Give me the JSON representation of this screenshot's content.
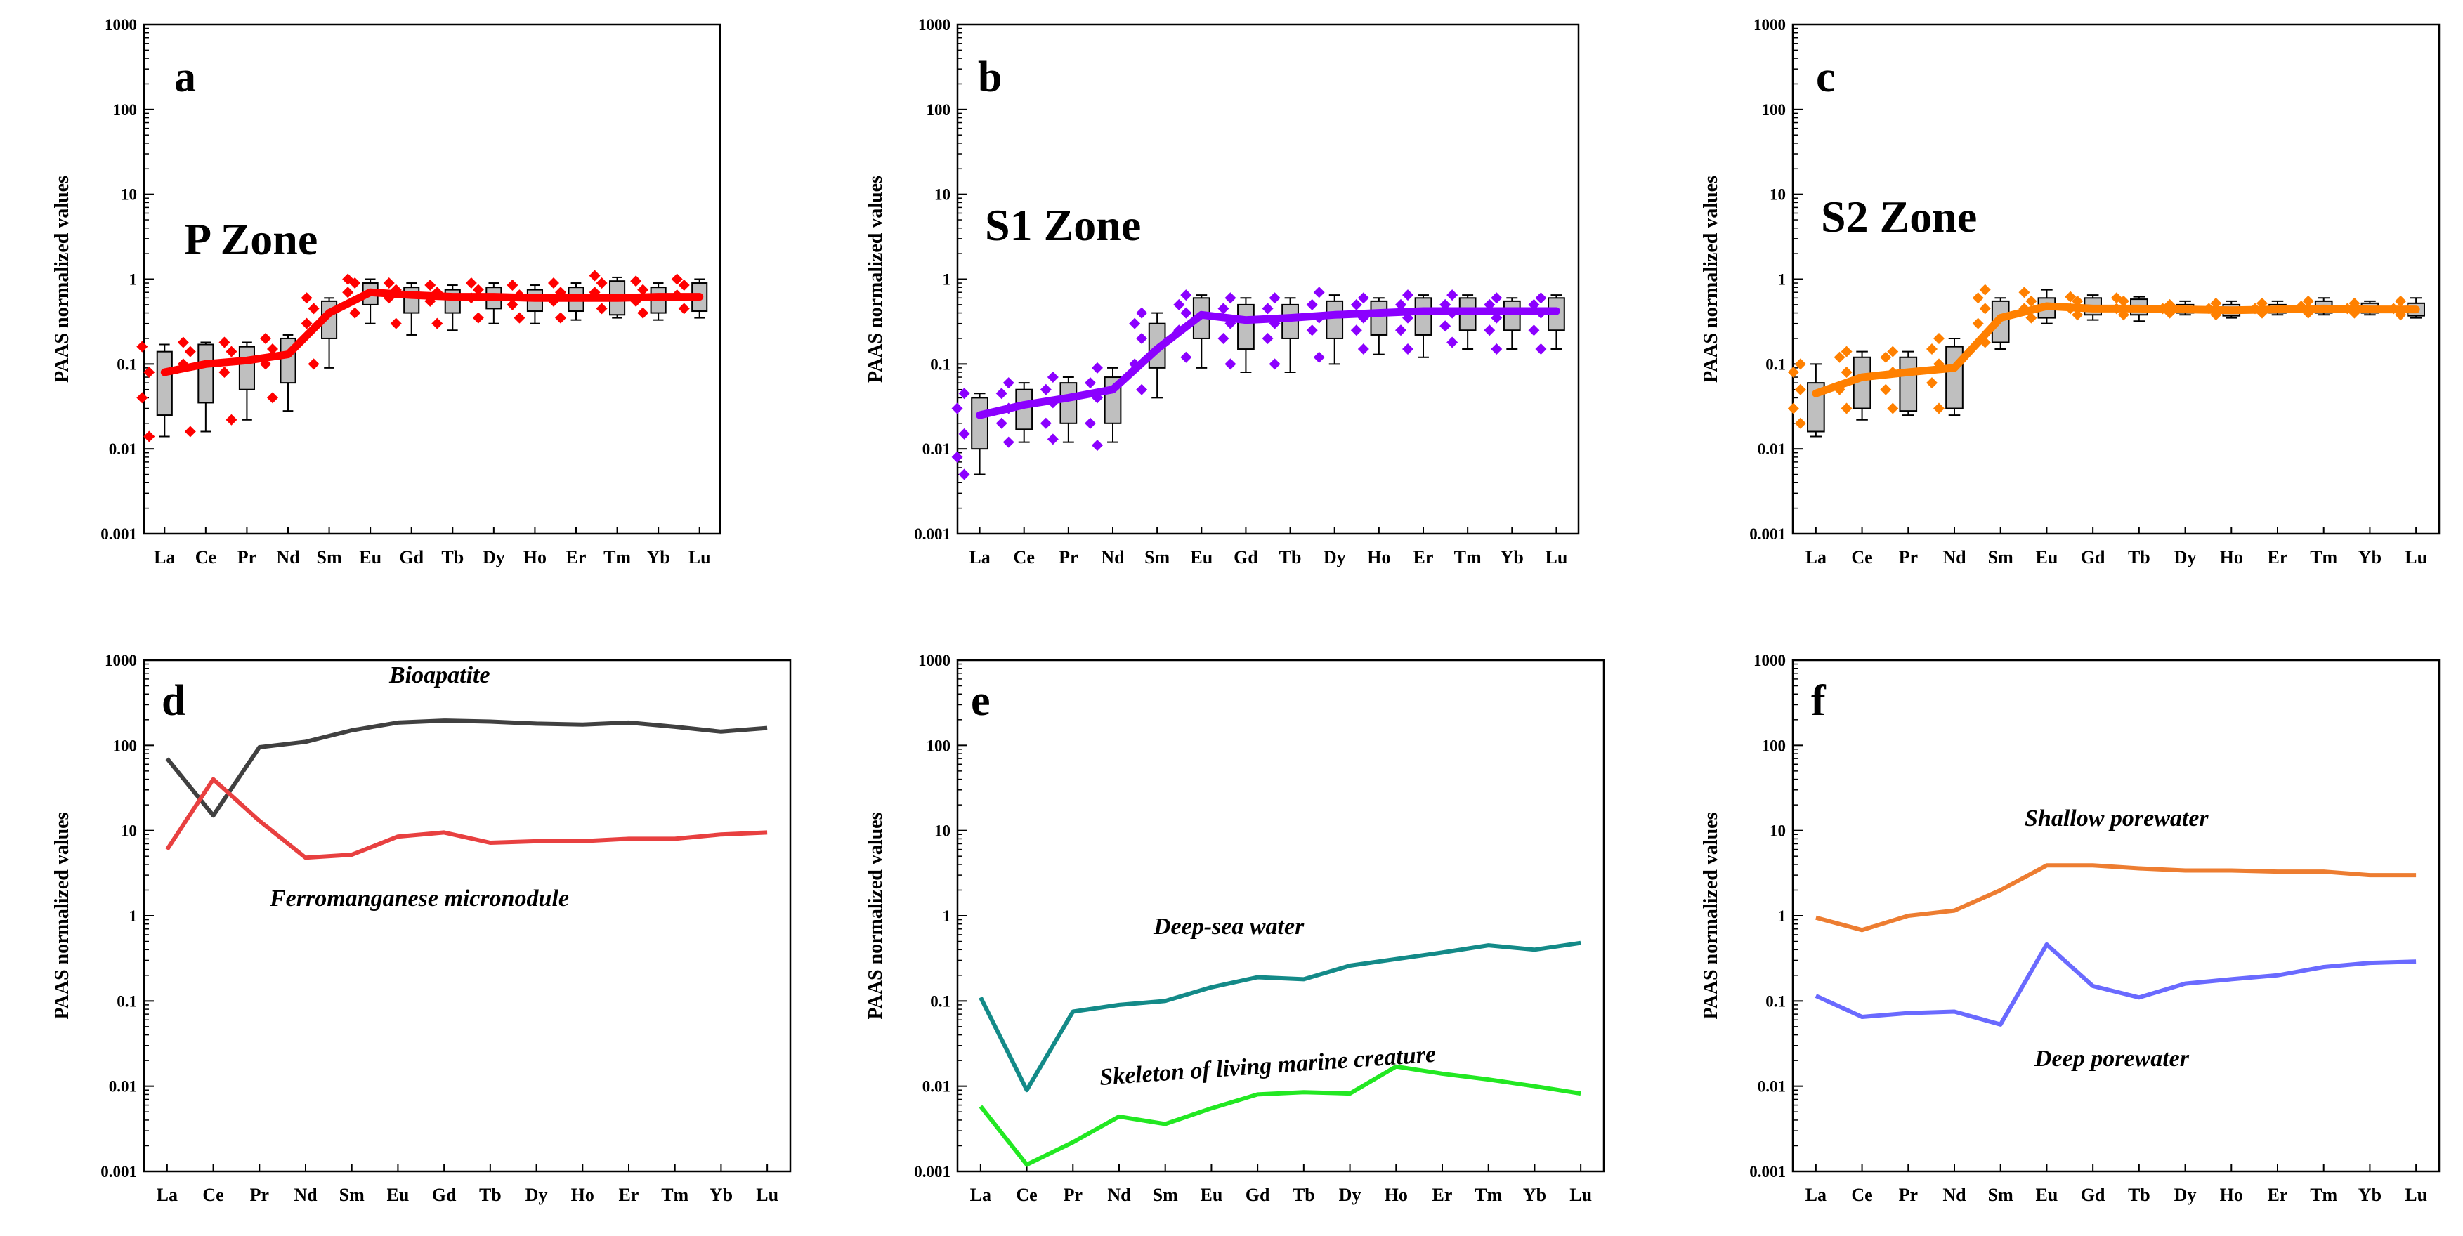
{
  "figure": {
    "elements": [
      "La",
      "Ce",
      "Pr",
      "Nd",
      "Sm",
      "Eu",
      "Gd",
      "Tb",
      "Dy",
      "Ho",
      "Er",
      "Tm",
      "Yb",
      "Lu"
    ],
    "ylabel": "PAAS normalized values",
    "y_ticks": [
      0.001,
      0.01,
      0.1,
      1,
      10,
      100,
      1000
    ],
    "y_tick_labels": [
      "0.001",
      "0.01",
      "0.1",
      "1",
      "10",
      "100",
      "1000"
    ]
  },
  "chart_data": [
    {
      "panel": "a",
      "type": "box_line",
      "title": "P Zone",
      "color": "#ff0000",
      "ylabel": "PAAS normalized values",
      "yscale": "log",
      "ylim": [
        0.001,
        1000
      ],
      "categories": [
        "La",
        "Ce",
        "Pr",
        "Nd",
        "Sm",
        "Eu",
        "Gd",
        "Tb",
        "Dy",
        "Ho",
        "Er",
        "Tm",
        "Yb",
        "Lu"
      ],
      "median_line": [
        0.08,
        0.1,
        0.11,
        0.13,
        0.4,
        0.7,
        0.65,
        0.62,
        0.62,
        0.6,
        0.6,
        0.6,
        0.62,
        0.62
      ],
      "boxes": [
        {
          "min": 0.014,
          "q1": 0.025,
          "q3": 0.14,
          "max": 0.17
        },
        {
          "min": 0.016,
          "q1": 0.035,
          "q3": 0.17,
          "max": 0.18
        },
        {
          "min": 0.022,
          "q1": 0.05,
          "q3": 0.16,
          "max": 0.18
        },
        {
          "min": 0.028,
          "q1": 0.06,
          "q3": 0.2,
          "max": 0.22
        },
        {
          "min": 0.09,
          "q1": 0.2,
          "q3": 0.55,
          "max": 0.6
        },
        {
          "min": 0.3,
          "q1": 0.5,
          "q3": 0.9,
          "max": 1.0
        },
        {
          "min": 0.22,
          "q1": 0.4,
          "q3": 0.8,
          "max": 0.9
        },
        {
          "min": 0.25,
          "q1": 0.4,
          "q3": 0.75,
          "max": 0.85
        },
        {
          "min": 0.3,
          "q1": 0.45,
          "q3": 0.8,
          "max": 0.9
        },
        {
          "min": 0.3,
          "q1": 0.42,
          "q3": 0.75,
          "max": 0.85
        },
        {
          "min": 0.33,
          "q1": 0.42,
          "q3": 0.8,
          "max": 0.9
        },
        {
          "min": 0.35,
          "q1": 0.38,
          "q3": 0.95,
          "max": 1.05
        },
        {
          "min": 0.33,
          "q1": 0.4,
          "q3": 0.8,
          "max": 0.9
        },
        {
          "min": 0.35,
          "q1": 0.42,
          "q3": 0.9,
          "max": 1.0
        }
      ],
      "scatter": [
        [
          0.014,
          0.04,
          0.08,
          0.16
        ],
        [
          0.016,
          0.1,
          0.14,
          0.18
        ],
        [
          0.022,
          0.08,
          0.14,
          0.18
        ],
        [
          0.04,
          0.1,
          0.15,
          0.2
        ],
        [
          0.1,
          0.3,
          0.45,
          0.6
        ],
        [
          0.4,
          0.7,
          0.9,
          1.0
        ],
        [
          0.3,
          0.6,
          0.75,
          0.9
        ],
        [
          0.3,
          0.55,
          0.7,
          0.85
        ],
        [
          0.35,
          0.6,
          0.75,
          0.9
        ],
        [
          0.35,
          0.5,
          0.65,
          0.85
        ],
        [
          0.35,
          0.55,
          0.7,
          0.9
        ],
        [
          0.45,
          0.7,
          0.9,
          1.1
        ],
        [
          0.4,
          0.55,
          0.75,
          0.95
        ],
        [
          0.45,
          0.65,
          0.85,
          1.0
        ]
      ]
    },
    {
      "panel": "b",
      "type": "box_line",
      "title": "S1 Zone",
      "color": "#8b00ff",
      "ylabel": "PAAS normalized values",
      "yscale": "log",
      "ylim": [
        0.001,
        1000
      ],
      "categories": [
        "La",
        "Ce",
        "Pr",
        "Nd",
        "Sm",
        "Eu",
        "Gd",
        "Tb",
        "Dy",
        "Ho",
        "Er",
        "Tm",
        "Yb",
        "Lu"
      ],
      "median_line": [
        0.025,
        0.033,
        0.04,
        0.05,
        0.15,
        0.38,
        0.33,
        0.35,
        0.38,
        0.4,
        0.42,
        0.42,
        0.42,
        0.42
      ],
      "boxes": [
        {
          "min": 0.005,
          "q1": 0.01,
          "q3": 0.04,
          "max": 0.045
        },
        {
          "min": 0.012,
          "q1": 0.017,
          "q3": 0.05,
          "max": 0.06
        },
        {
          "min": 0.012,
          "q1": 0.02,
          "q3": 0.06,
          "max": 0.07
        },
        {
          "min": 0.012,
          "q1": 0.02,
          "q3": 0.07,
          "max": 0.09
        },
        {
          "min": 0.04,
          "q1": 0.09,
          "q3": 0.3,
          "max": 0.4
        },
        {
          "min": 0.09,
          "q1": 0.2,
          "q3": 0.6,
          "max": 0.65
        },
        {
          "min": 0.08,
          "q1": 0.15,
          "q3": 0.5,
          "max": 0.6
        },
        {
          "min": 0.08,
          "q1": 0.2,
          "q3": 0.5,
          "max": 0.6
        },
        {
          "min": 0.1,
          "q1": 0.2,
          "q3": 0.55,
          "max": 0.65
        },
        {
          "min": 0.13,
          "q1": 0.22,
          "q3": 0.55,
          "max": 0.6
        },
        {
          "min": 0.12,
          "q1": 0.22,
          "q3": 0.6,
          "max": 0.65
        },
        {
          "min": 0.15,
          "q1": 0.25,
          "q3": 0.6,
          "max": 0.65
        },
        {
          "min": 0.15,
          "q1": 0.25,
          "q3": 0.55,
          "max": 0.6
        },
        {
          "min": 0.15,
          "q1": 0.25,
          "q3": 0.6,
          "max": 0.65
        }
      ],
      "scatter": [
        [
          0.005,
          0.008,
          0.015,
          0.03,
          0.045
        ],
        [
          0.012,
          0.02,
          0.03,
          0.045,
          0.06
        ],
        [
          0.013,
          0.02,
          0.035,
          0.05,
          0.07
        ],
        [
          0.011,
          0.02,
          0.04,
          0.06,
          0.09
        ],
        [
          0.05,
          0.1,
          0.2,
          0.3,
          0.4
        ],
        [
          0.12,
          0.25,
          0.4,
          0.5,
          0.65
        ],
        [
          0.1,
          0.2,
          0.3,
          0.45,
          0.6
        ],
        [
          0.1,
          0.2,
          0.3,
          0.45,
          0.6
        ],
        [
          0.12,
          0.25,
          0.35,
          0.5,
          0.7
        ],
        [
          0.15,
          0.25,
          0.35,
          0.5,
          0.6
        ],
        [
          0.15,
          0.25,
          0.35,
          0.5,
          0.65
        ],
        [
          0.18,
          0.28,
          0.4,
          0.5,
          0.65
        ],
        [
          0.15,
          0.25,
          0.35,
          0.5,
          0.6
        ],
        [
          0.15,
          0.25,
          0.4,
          0.5,
          0.6
        ]
      ]
    },
    {
      "panel": "c",
      "type": "box_line",
      "title": "S2 Zone",
      "color": "#ff8000",
      "ylabel": "PAAS normalized values",
      "yscale": "log",
      "ylim": [
        0.001,
        1000
      ],
      "categories": [
        "La",
        "Ce",
        "Pr",
        "Nd",
        "Sm",
        "Eu",
        "Gd",
        "Tb",
        "Dy",
        "Ho",
        "Er",
        "Tm",
        "Yb",
        "Lu"
      ],
      "median_line": [
        0.045,
        0.07,
        0.08,
        0.09,
        0.35,
        0.48,
        0.45,
        0.45,
        0.44,
        0.43,
        0.44,
        0.45,
        0.44,
        0.44
      ],
      "boxes": [
        {
          "min": 0.014,
          "q1": 0.016,
          "q3": 0.06,
          "max": 0.1
        },
        {
          "min": 0.022,
          "q1": 0.03,
          "q3": 0.12,
          "max": 0.14
        },
        {
          "min": 0.025,
          "q1": 0.028,
          "q3": 0.12,
          "max": 0.14
        },
        {
          "min": 0.025,
          "q1": 0.03,
          "q3": 0.16,
          "max": 0.2
        },
        {
          "min": 0.15,
          "q1": 0.18,
          "q3": 0.55,
          "max": 0.6
        },
        {
          "min": 0.3,
          "q1": 0.35,
          "q3": 0.6,
          "max": 0.75
        },
        {
          "min": 0.33,
          "q1": 0.38,
          "q3": 0.6,
          "max": 0.65
        },
        {
          "min": 0.32,
          "q1": 0.38,
          "q3": 0.58,
          "max": 0.62
        },
        {
          "min": 0.38,
          "q1": 0.4,
          "q3": 0.5,
          "max": 0.55
        },
        {
          "min": 0.35,
          "q1": 0.37,
          "q3": 0.5,
          "max": 0.55
        },
        {
          "min": 0.38,
          "q1": 0.4,
          "q3": 0.5,
          "max": 0.55
        },
        {
          "min": 0.38,
          "q1": 0.4,
          "q3": 0.55,
          "max": 0.6
        },
        {
          "min": 0.38,
          "q1": 0.4,
          "q3": 0.52,
          "max": 0.55
        },
        {
          "min": 0.35,
          "q1": 0.37,
          "q3": 0.52,
          "max": 0.6
        }
      ],
      "scatter": [
        [
          0.02,
          0.03,
          0.05,
          0.08,
          0.1
        ],
        [
          0.03,
          0.05,
          0.08,
          0.12,
          0.14
        ],
        [
          0.03,
          0.05,
          0.08,
          0.12,
          0.14
        ],
        [
          0.03,
          0.06,
          0.1,
          0.15,
          0.2
        ],
        [
          0.18,
          0.3,
          0.45,
          0.6,
          0.75
        ],
        [
          0.35,
          0.45,
          0.55,
          0.7
        ],
        [
          0.38,
          0.45,
          0.55,
          0.62
        ],
        [
          0.38,
          0.45,
          0.55,
          0.6
        ],
        [
          0.4,
          0.45,
          0.5
        ],
        [
          0.38,
          0.45,
          0.52
        ],
        [
          0.4,
          0.45,
          0.52
        ],
        [
          0.4,
          0.48,
          0.55
        ],
        [
          0.4,
          0.45,
          0.52
        ],
        [
          0.38,
          0.45,
          0.55
        ]
      ]
    },
    {
      "panel": "d",
      "type": "line",
      "yscale": "log",
      "ylim": [
        0.001,
        1000
      ],
      "ylabel": "PAAS normalized values",
      "categories": [
        "La",
        "Ce",
        "Pr",
        "Nd",
        "Sm",
        "Eu",
        "Gd",
        "Tb",
        "Dy",
        "Ho",
        "Er",
        "Tm",
        "Yb",
        "Lu"
      ],
      "series": [
        {
          "name": "Bioapatite",
          "color": "#404040",
          "values": [
            70,
            15,
            95,
            110,
            150,
            185,
            195,
            190,
            180,
            175,
            185,
            165,
            145,
            160
          ]
        },
        {
          "name": "Ferromanganese micronodule",
          "color": "#e84040",
          "values": [
            6,
            40,
            13,
            4.8,
            5.2,
            8.5,
            9.5,
            7.2,
            7.5,
            7.5,
            8,
            8,
            9,
            9.5
          ]
        }
      ]
    },
    {
      "panel": "e",
      "type": "line",
      "yscale": "log",
      "ylim": [
        0.001,
        1000
      ],
      "ylabel": "PAAS normalized values",
      "categories": [
        "La",
        "Ce",
        "Pr",
        "Nd",
        "Sm",
        "Eu",
        "Gd",
        "Tb",
        "Dy",
        "Ho",
        "Er",
        "Tm",
        "Yb",
        "Lu"
      ],
      "series": [
        {
          "name": "Deep-sea water",
          "color": "#138a88",
          "values": [
            0.11,
            0.009,
            0.075,
            0.09,
            0.1,
            0.145,
            0.19,
            0.18,
            0.26,
            0.31,
            0.37,
            0.45,
            0.4,
            0.48
          ]
        },
        {
          "name": "Skeleton of living marine creature",
          "color": "#22e822",
          "values": [
            0.0058,
            0.0012,
            0.0022,
            0.0044,
            0.0036,
            0.0055,
            0.008,
            0.0085,
            0.0082,
            0.017,
            0.014,
            0.012,
            0.01,
            0.0082
          ]
        }
      ]
    },
    {
      "panel": "f",
      "type": "line",
      "yscale": "log",
      "ylim": [
        0.001,
        1000
      ],
      "ylabel": "PAAS normalized values",
      "categories": [
        "La",
        "Ce",
        "Pr",
        "Nd",
        "Sm",
        "Eu",
        "Gd",
        "Tb",
        "Dy",
        "Ho",
        "Er",
        "Tm",
        "Yb",
        "Lu"
      ],
      "series": [
        {
          "name": "Shallow porewater",
          "color": "#ed7d31",
          "values": [
            0.95,
            0.68,
            1.0,
            1.15,
            2.0,
            3.9,
            3.9,
            3.6,
            3.4,
            3.4,
            3.3,
            3.3,
            3.0,
            3.0
          ]
        },
        {
          "name": "Deep porewater",
          "color": "#6a6aff",
          "values": [
            0.115,
            0.065,
            0.072,
            0.075,
            0.053,
            0.46,
            0.15,
            0.11,
            0.16,
            0.18,
            0.2,
            0.25,
            0.28,
            0.29
          ]
        }
      ]
    }
  ],
  "panels": {
    "a": {
      "letter": "a",
      "zone": "P Zone"
    },
    "b": {
      "letter": "b",
      "zone": "S1 Zone"
    },
    "c": {
      "letter": "c",
      "zone": "S2 Zone"
    },
    "d": {
      "letter": "d",
      "label1": "Bioapatite",
      "label2": "Ferromanganese micronodule"
    },
    "e": {
      "letter": "e",
      "label1": "Deep-sea water",
      "label2": "Skeleton of living marine creature"
    },
    "f": {
      "letter": "f",
      "label1": "Shallow porewater",
      "label2": "Deep porewater"
    }
  }
}
